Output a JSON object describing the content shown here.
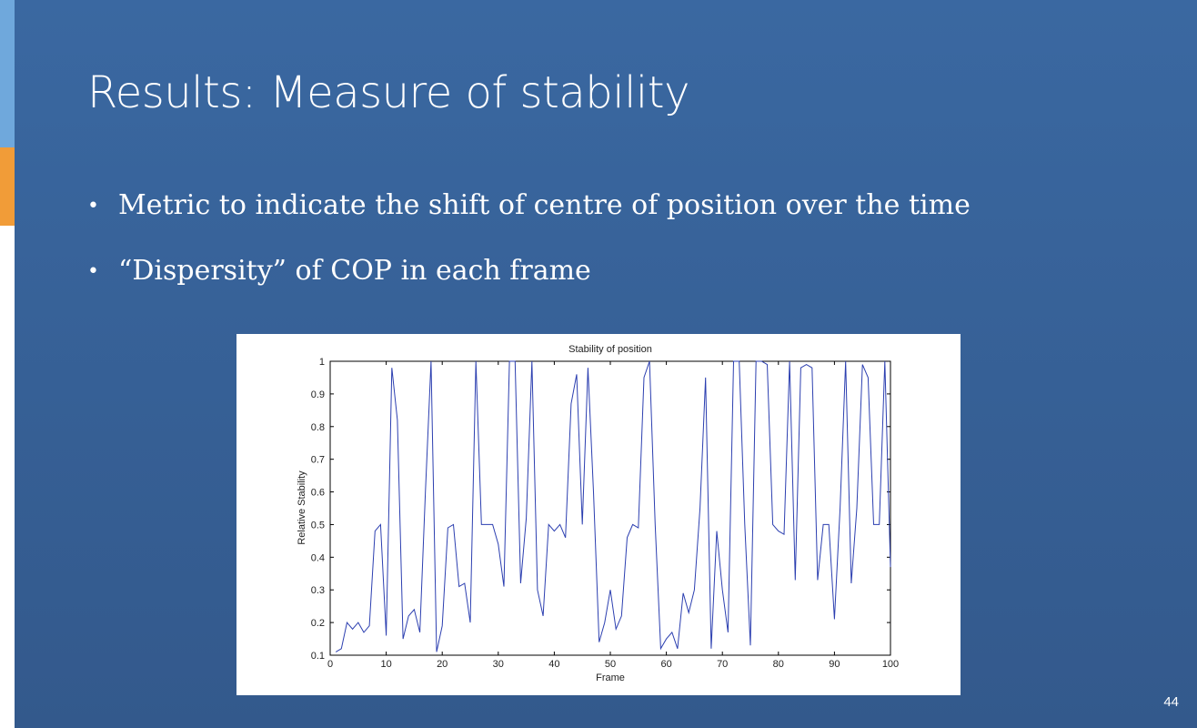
{
  "slide": {
    "title": "Results: Measure of stability",
    "bullets": [
      "Metric to indicate the shift of centre of position over the time",
      "“Dispersity” of COP in each frame"
    ],
    "page_number": "44",
    "colors": {
      "background": "#3a68a1",
      "accent_blue": "#6fa8dc",
      "accent_orange": "#f19c38",
      "line": "#2c3fb0"
    }
  },
  "chart_data": {
    "type": "line",
    "title": "Stability of position",
    "xlabel": "Frame",
    "ylabel": "Relative Stability",
    "xlim": [
      0,
      100
    ],
    "ylim": [
      0.1,
      1
    ],
    "xticks": [
      "0",
      "10",
      "20",
      "30",
      "40",
      "50",
      "60",
      "70",
      "80",
      "90",
      "100"
    ],
    "yticks": [
      "0.1",
      "0.2",
      "0.3",
      "0.4",
      "0.5",
      "0.6",
      "0.7",
      "0.8",
      "0.9",
      "1"
    ],
    "grid": false,
    "series": [
      {
        "x": [
          1,
          2,
          3,
          4,
          5,
          6,
          7,
          8,
          9,
          10,
          11,
          12,
          13,
          14,
          15,
          16,
          17,
          18,
          19,
          20,
          21,
          22,
          23,
          24,
          25,
          26,
          27,
          28,
          29,
          30,
          31,
          32,
          33,
          34,
          35,
          36,
          37,
          38,
          39,
          40,
          41,
          42,
          43,
          44,
          45,
          46,
          47,
          48,
          49,
          50,
          51,
          52,
          53,
          54,
          55,
          56,
          57,
          58,
          59,
          60,
          61,
          62,
          63,
          64,
          65,
          66,
          67,
          68,
          69,
          70,
          71,
          72,
          73,
          74,
          75,
          76,
          77,
          78,
          79,
          80,
          81,
          82,
          83,
          84,
          85,
          86,
          87,
          88,
          89,
          90,
          91,
          92,
          93,
          94,
          95,
          96,
          97,
          98,
          99,
          100
        ],
        "values": [
          0.11,
          0.12,
          0.2,
          0.18,
          0.2,
          0.17,
          0.19,
          0.48,
          0.5,
          0.16,
          0.98,
          0.82,
          0.15,
          0.22,
          0.24,
          0.17,
          0.6,
          1.0,
          0.11,
          0.19,
          0.49,
          0.5,
          0.31,
          0.32,
          0.2,
          1.0,
          0.5,
          0.5,
          0.5,
          0.44,
          0.31,
          1.0,
          1.0,
          0.32,
          0.52,
          1.0,
          0.3,
          0.22,
          0.5,
          0.48,
          0.5,
          0.46,
          0.87,
          0.96,
          0.5,
          0.98,
          0.6,
          0.14,
          0.2,
          0.3,
          0.18,
          0.22,
          0.46,
          0.5,
          0.49,
          0.95,
          1.0,
          0.5,
          0.12,
          0.15,
          0.17,
          0.12,
          0.29,
          0.23,
          0.3,
          0.55,
          0.95,
          0.12,
          0.48,
          0.3,
          0.17,
          1.0,
          1.0,
          0.5,
          0.13,
          1.0,
          1.0,
          0.99,
          0.5,
          0.48,
          0.47,
          1.0,
          0.33,
          0.98,
          0.99,
          0.98,
          0.33,
          0.5,
          0.5,
          0.21,
          0.55,
          1.0,
          0.32,
          0.55,
          0.99,
          0.95,
          0.5,
          0.5,
          1.0,
          0.37
        ]
      }
    ]
  }
}
